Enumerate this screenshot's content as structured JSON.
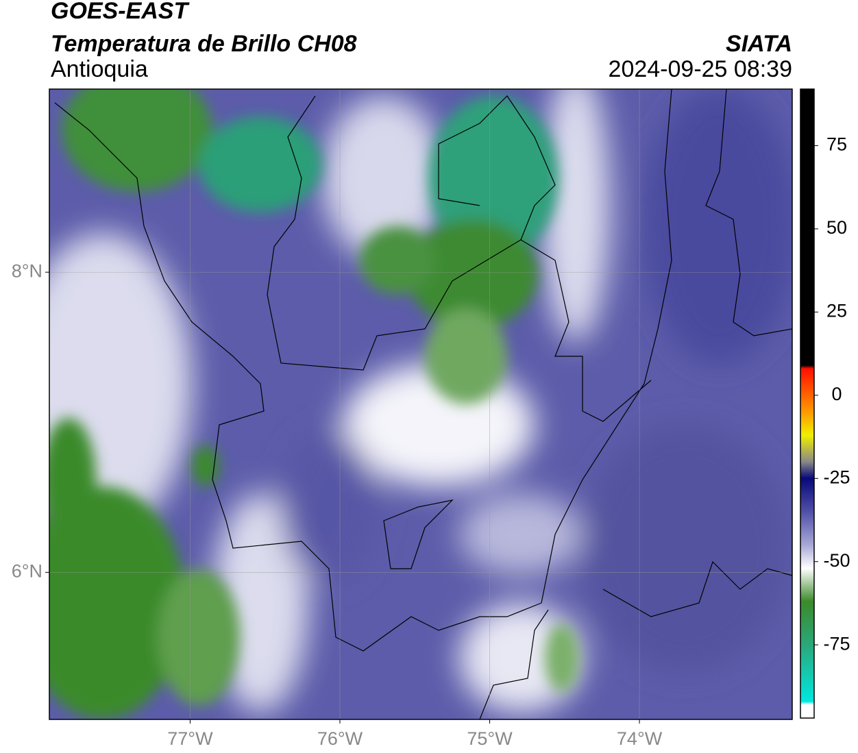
{
  "map": {
    "satellite": "GOES-EAST",
    "title": "Temperatura de Brillo CH08",
    "region": "Antioquia",
    "source": "SIATA",
    "datetime": "2024-09-25 08:39",
    "xlim": [
      -77.94,
      -72.98
    ],
    "ylim": [
      5.02,
      9.22
    ],
    "xticks": [
      {
        "value": -77,
        "label": "77°W"
      },
      {
        "value": -76,
        "label": "76°W"
      },
      {
        "value": -75,
        "label": "75°W"
      },
      {
        "value": -74,
        "label": "74°W"
      }
    ],
    "yticks": [
      {
        "value": 6,
        "label": "6°N"
      },
      {
        "value": 8,
        "label": "8°N"
      }
    ],
    "grid": true
  },
  "colorbar": {
    "lim": [
      -97,
      92
    ],
    "ticks": [
      -75,
      -50,
      -25,
      0,
      25,
      50,
      75
    ],
    "stops": [
      {
        "value": -97,
        "color": "#ffffff"
      },
      {
        "value": -93,
        "color": "#ffffff"
      },
      {
        "value": -92,
        "color": "#00e8e0"
      },
      {
        "value": -75,
        "color": "#2aa87a"
      },
      {
        "value": -62,
        "color": "#3b8a2a"
      },
      {
        "value": -52,
        "color": "#ffffff"
      },
      {
        "value": -45,
        "color": "#a8a8d8"
      },
      {
        "value": -35,
        "color": "#5050a8"
      },
      {
        "value": -25,
        "color": "#08087a"
      },
      {
        "value": -20,
        "color": "#888888"
      },
      {
        "value": -12,
        "color": "#f0f000"
      },
      {
        "value": -5,
        "color": "#ff9900"
      },
      {
        "value": 8,
        "color": "#ff1000"
      },
      {
        "value": 9,
        "color": "#000000"
      },
      {
        "value": 92,
        "color": "#000000"
      }
    ]
  }
}
